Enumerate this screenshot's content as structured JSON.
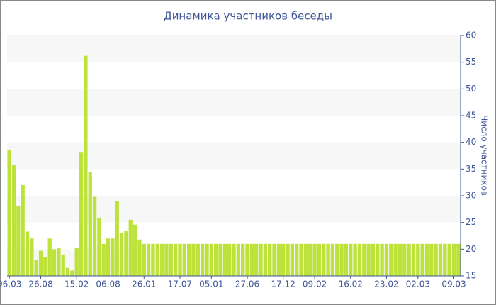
{
  "chart_data": {
    "type": "bar",
    "title": "Динамика участников беседы",
    "y_label": "Число участников",
    "categories": [
      "06.03",
      null,
      null,
      null,
      null,
      null,
      null,
      "26.08",
      null,
      null,
      null,
      null,
      null,
      null,
      null,
      "15.02",
      null,
      null,
      null,
      null,
      null,
      null,
      "06.08",
      null,
      null,
      null,
      null,
      null,
      null,
      null,
      "26.01",
      null,
      null,
      null,
      null,
      null,
      null,
      null,
      "17.07",
      null,
      null,
      null,
      null,
      null,
      null,
      "05.01",
      null,
      null,
      null,
      null,
      null,
      null,
      null,
      "27.06",
      null,
      null,
      null,
      null,
      null,
      null,
      null,
      "17.12",
      null,
      null,
      null,
      null,
      null,
      null,
      "09.02",
      null,
      null,
      null,
      null,
      null,
      null,
      null,
      "16.02",
      null,
      null,
      null,
      null,
      null,
      null,
      null,
      "23.02",
      null,
      null,
      null,
      null,
      null,
      null,
      "02.03",
      null,
      null,
      null,
      null,
      null,
      null,
      null,
      "09.03",
      null
    ],
    "values": [
      38.5,
      35.7,
      28,
      32,
      23.3,
      22,
      18,
      19.7,
      18.5,
      22,
      20,
      20.3,
      19,
      16.5,
      16,
      20.2,
      38.2,
      56.2,
      34.4,
      29.8,
      25.9,
      21,
      22,
      22,
      29,
      23,
      23.5,
      25.5,
      24.6,
      21.8,
      21,
      21,
      21,
      21,
      21,
      21,
      21,
      21,
      21,
      21,
      21,
      21,
      21,
      21,
      21,
      21,
      21,
      21,
      21,
      21,
      21,
      21,
      21,
      21,
      21,
      21,
      21,
      21,
      21,
      21,
      21,
      21,
      21,
      21,
      21,
      21,
      21,
      21,
      21,
      21,
      21,
      21,
      21,
      21,
      21,
      21,
      21,
      21,
      21,
      21,
      21,
      21,
      21,
      21,
      21,
      21,
      21,
      21,
      21,
      21,
      21,
      21,
      21,
      21,
      21,
      21,
      21,
      21,
      21,
      21,
      21
    ],
    "color": "#bde33b",
    "ylim": [
      15,
      60
    ],
    "yticks": [
      15,
      20,
      25,
      30,
      35,
      40,
      45,
      50,
      55,
      60
    ],
    "band_color": "#f7f7f7",
    "y_axis_side": "right"
  }
}
